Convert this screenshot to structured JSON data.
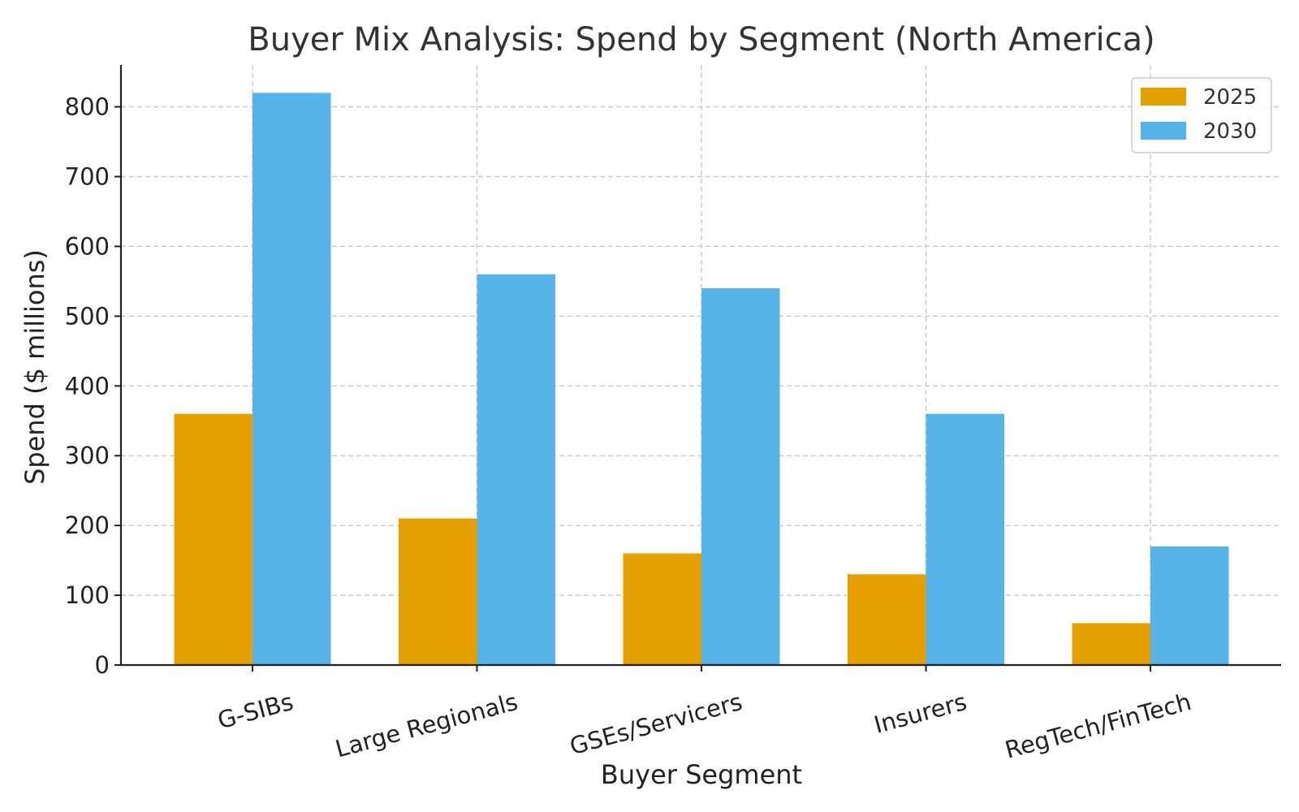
{
  "chart_data": {
    "type": "bar",
    "title": "Buyer Mix Analysis: Spend by Segment (North America)",
    "xlabel": "Buyer Segment",
    "ylabel": "Spend ($ millions)",
    "categories": [
      "G-SIBs",
      "Large Regionals",
      "GSEs/Servicers",
      "Insurers",
      "RegTech/FinTech"
    ],
    "series": [
      {
        "name": "2025",
        "color": "#E69F00",
        "values": [
          360,
          210,
          160,
          130,
          60
        ]
      },
      {
        "name": "2030",
        "color": "#56B4E9",
        "values": [
          820,
          560,
          540,
          360,
          170
        ]
      }
    ],
    "yticks": [
      0,
      100,
      200,
      300,
      400,
      500,
      600,
      700,
      800
    ],
    "ylim": [
      0,
      860
    ],
    "grid": true,
    "legend_position": "top-right"
  }
}
